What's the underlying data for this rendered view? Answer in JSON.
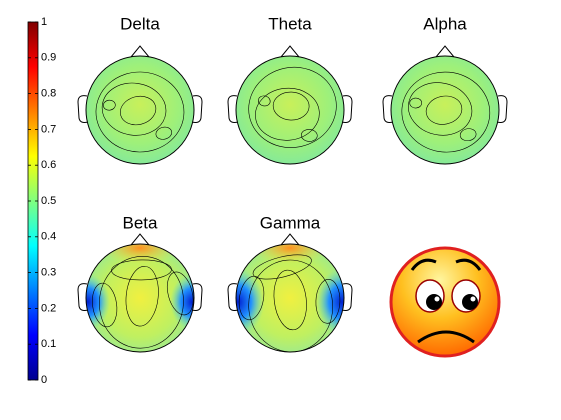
{
  "chart_data": {
    "type": "topoplot",
    "titles": [
      "Delta",
      "Theta",
      "Alpha",
      "Beta",
      "Gamma"
    ],
    "colormap": "jet",
    "clim": [
      0,
      1
    ],
    "colorbar_ticks": [
      0,
      0.1,
      0.2,
      0.3,
      0.4,
      0.5,
      0.6,
      0.7,
      0.8,
      0.9,
      1
    ]
  }
}
